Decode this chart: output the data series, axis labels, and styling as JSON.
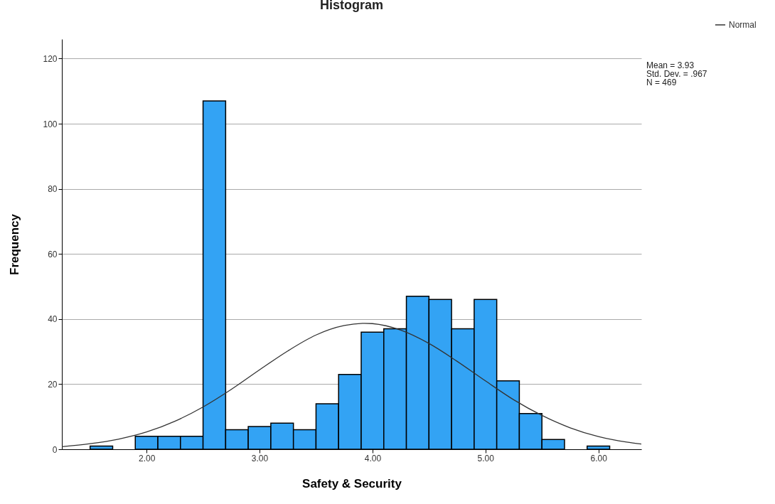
{
  "chart_data": {
    "type": "histogram",
    "title": "Histogram",
    "xlabel": "Safety & Security",
    "ylabel": "Frequency",
    "bins": [
      1.5,
      1.7,
      1.9,
      2.1,
      2.3,
      2.5,
      2.7,
      2.9,
      3.1,
      3.3,
      3.5,
      3.7,
      3.9,
      4.1,
      4.3,
      4.5,
      4.7,
      4.9,
      5.1,
      5.3,
      5.5,
      5.7,
      5.9,
      6.1
    ],
    "values": [
      1,
      0,
      4,
      4,
      4,
      107,
      6,
      7,
      8,
      6,
      14,
      23,
      36,
      37,
      47,
      46,
      37,
      46,
      21,
      11,
      3,
      0,
      1
    ],
    "color": "#33a3f4",
    "series": [
      {
        "name": "Normal",
        "type": "line",
        "color": "#333333",
        "x": [
          1.25,
          1.5,
          1.75,
          2.0,
          2.25,
          2.5,
          2.75,
          3.0,
          3.25,
          3.5,
          3.75,
          3.93,
          4.0,
          4.25,
          4.5,
          4.75,
          5.0,
          5.25,
          5.5,
          5.75,
          6.0,
          6.25,
          6.38
        ],
        "values": [
          0.8,
          1.7,
          3.1,
          5.3,
          8.6,
          13.0,
          18.4,
          24.4,
          30.2,
          35.1,
          38.0,
          38.7,
          38.6,
          36.6,
          32.5,
          27.0,
          21.0,
          15.2,
          10.4,
          6.6,
          3.9,
          2.2,
          1.6
        ]
      }
    ],
    "xlim": [
      1.25,
      6.38
    ],
    "xticks": [
      {
        "value": 2,
        "label": "2.00"
      },
      {
        "value": 3,
        "label": "3.00"
      },
      {
        "value": 4,
        "label": "4.00"
      },
      {
        "value": 5,
        "label": "5.00"
      },
      {
        "value": 6,
        "label": "6.00"
      }
    ],
    "ylim": [
      0,
      126
    ],
    "yticks": [
      0,
      20,
      40,
      60,
      80,
      100,
      120
    ],
    "grid": "y",
    "legend": "top right",
    "annotations": [
      "Mean = 3.93",
      "Std. Dev. = .967",
      "N = 469"
    ]
  }
}
